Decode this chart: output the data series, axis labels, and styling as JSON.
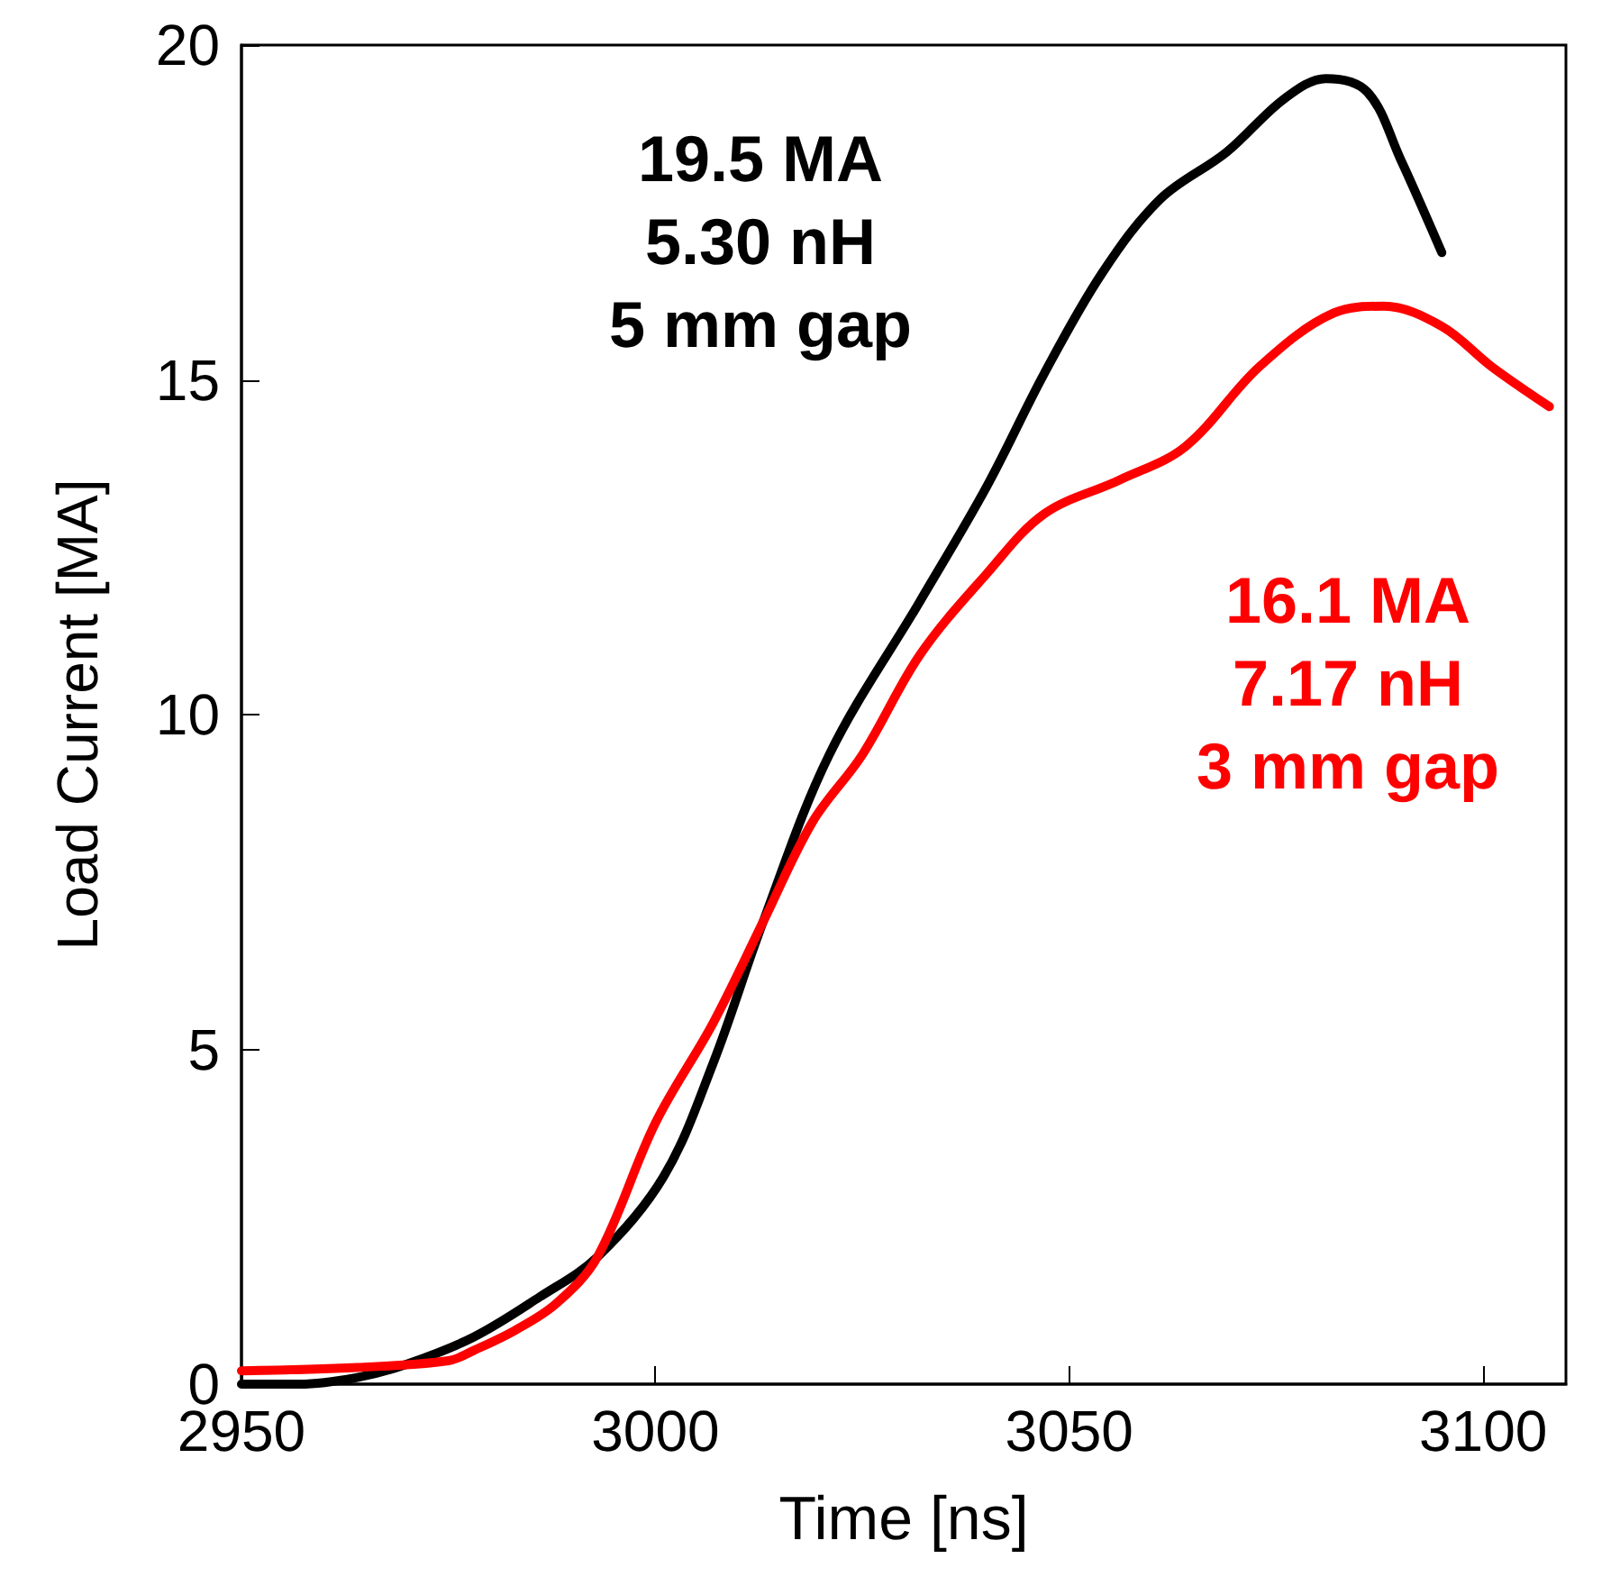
{
  "chart_data": {
    "type": "line",
    "xlabel": "Time [ns]",
    "ylabel": "Load Current [MA]",
    "xlim": [
      2950,
      3110
    ],
    "xticks": [
      2950,
      3000,
      3050,
      3100
    ],
    "ylim": [
      0,
      20
    ],
    "yticks": [
      0,
      5,
      10,
      15,
      20
    ],
    "grid": false,
    "legend": false,
    "marker": "none",
    "line_style": "solid",
    "series": [
      {
        "name": "19.5 MA\n5.30 nH\n5 mm gap",
        "color": "#000000",
        "x": [
          2950,
          2957,
          2964,
          2970,
          2978,
          2986,
          2993,
          3001,
          3007,
          3013,
          3021,
          3032,
          3040,
          3047,
          3054,
          3061,
          3069,
          3076,
          3081,
          3086,
          3090,
          3095
        ],
        "values": [
          0,
          0,
          0.1,
          0.3,
          0.7,
          1.3,
          1.9,
          3.1,
          4.8,
          6.9,
          9.4,
          11.7,
          13.4,
          15.1,
          16.6,
          17.7,
          18.4,
          19.2,
          19.5,
          19.3,
          18.3,
          16.9
        ]
      },
      {
        "name": "16.1 MA\n7.17 nH\n3 mm gap",
        "color": "#ff0000",
        "x": [
          2950,
          2964,
          2975,
          2978,
          2983,
          2988,
          2993,
          3000,
          3007,
          3013,
          3019,
          3025,
          3032,
          3040,
          3047,
          3056,
          3064,
          3073,
          3082,
          3088,
          3095,
          3101,
          3108
        ],
        "values": [
          0.2,
          0.25,
          0.35,
          0.5,
          0.8,
          1.2,
          1.9,
          3.9,
          5.4,
          6.9,
          8.4,
          9.4,
          10.9,
          12.1,
          13.0,
          13.5,
          14.0,
          15.2,
          16.0,
          16.1,
          15.8,
          15.2,
          14.6
        ]
      }
    ]
  }
}
